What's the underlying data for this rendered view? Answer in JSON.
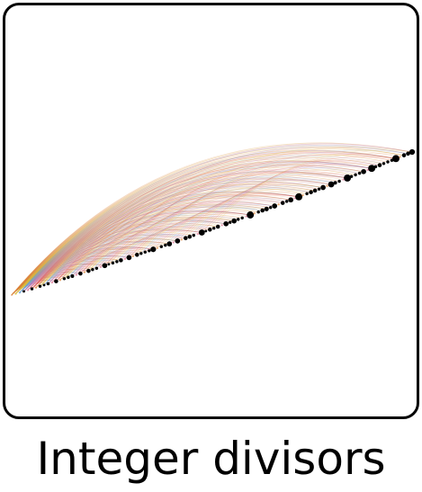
{
  "tile": {
    "caption": "Integer divisors",
    "arc_colors": [
      "#e04040",
      "#e08a40",
      "#d9c040",
      "#6aa0d8",
      "#b070c0",
      "#e07a9a"
    ],
    "node_color": "#000000"
  }
}
